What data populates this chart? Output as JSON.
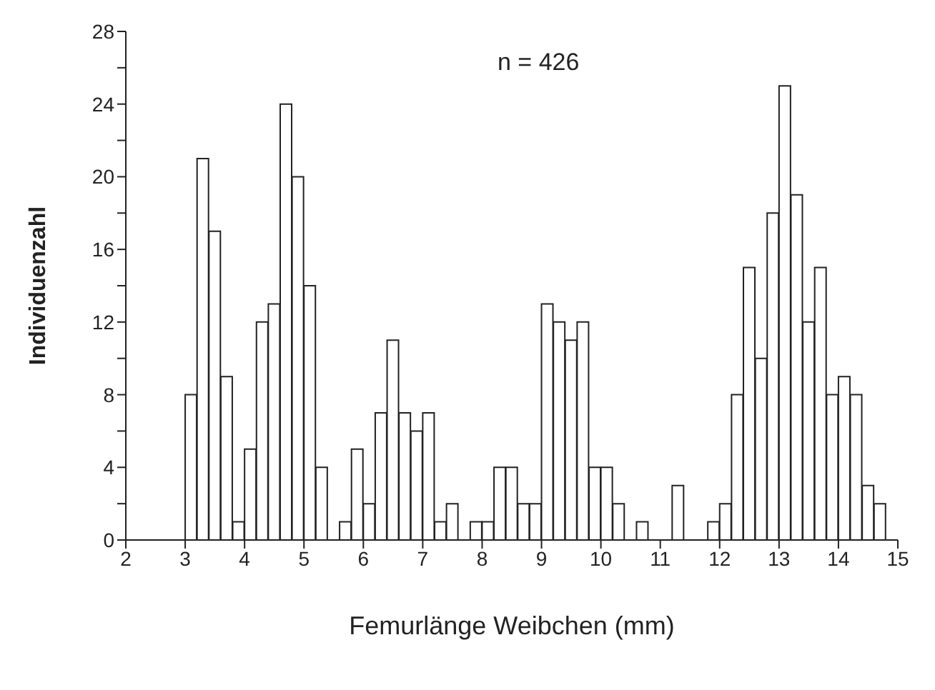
{
  "chart_data": {
    "type": "histogram",
    "xlabel": "Femurlänge  Weibchen  (mm)",
    "ylabel": "Individuenzahl",
    "annotations": [
      "n = 426"
    ],
    "bins": [
      3.0,
      3.2,
      3.4,
      3.6,
      3.8,
      4.0,
      4.2,
      4.4,
      4.6,
      4.8,
      5.0,
      5.2,
      5.4,
      5.6,
      5.8,
      6.0,
      6.2,
      6.4,
      6.6,
      6.8,
      7.0,
      7.2,
      7.4,
      7.6,
      7.8,
      8.0,
      8.2,
      8.4,
      8.6,
      8.8,
      9.0,
      9.2,
      9.4,
      9.6,
      9.8,
      10.0,
      10.2,
      10.4,
      10.6,
      10.8,
      11.0,
      11.2,
      11.4,
      11.6,
      11.8,
      12.0,
      12.2,
      12.4,
      12.6,
      12.8,
      13.0,
      13.2,
      13.4,
      13.6,
      13.8,
      14.0,
      14.2,
      14.4,
      14.6,
      14.8
    ],
    "values": [
      8,
      21,
      17,
      9,
      1,
      5,
      12,
      13,
      24,
      20,
      14,
      4,
      0,
      1,
      5,
      2,
      7,
      11,
      7,
      6,
      7,
      1,
      2,
      0,
      1,
      1,
      4,
      4,
      2,
      2,
      13,
      12,
      11,
      12,
      4,
      4,
      2,
      0,
      1,
      0,
      0,
      3,
      0,
      0,
      1,
      2,
      8,
      15,
      10,
      18,
      25,
      19,
      12,
      15,
      8,
      9,
      8,
      3,
      2
    ],
    "color": "#ffffff",
    "xlim": [
      2,
      15
    ],
    "xticks": [
      2,
      3,
      4,
      5,
      6,
      7,
      8,
      9,
      10,
      11,
      12,
      13,
      14,
      15
    ],
    "ylim": [
      0,
      28
    ],
    "yticks": [
      0,
      {
        "value": 2,
        "label": null
      },
      4,
      {
        "value": 6,
        "label": null
      },
      8,
      {
        "value": 10,
        "label": null
      },
      12,
      {
        "value": 14,
        "label": null
      },
      16,
      {
        "value": 18,
        "label": null
      },
      20,
      {
        "value": 22,
        "label": null
      },
      24,
      {
        "value": 26,
        "label": null
      },
      28
    ],
    "grid": false
  }
}
